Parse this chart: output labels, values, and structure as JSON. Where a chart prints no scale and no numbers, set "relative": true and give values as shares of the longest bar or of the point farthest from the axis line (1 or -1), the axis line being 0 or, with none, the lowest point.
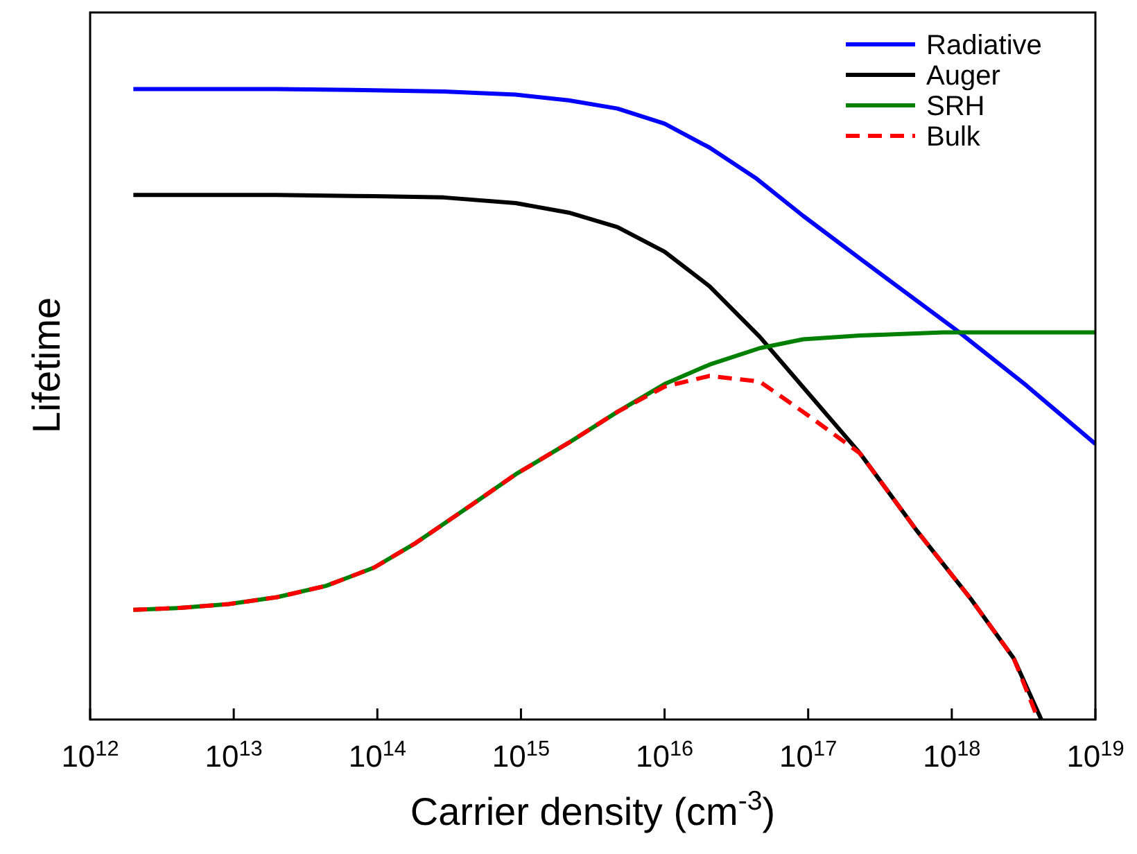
{
  "chart_data": {
    "type": "line",
    "relative": true,
    "xlabel": "Carrier density (cm$^{-3}$)",
    "ylabel": "Lifetime",
    "log": "x",
    "xlim": [
      1000000000000.0,
      1e+19
    ],
    "xticks": [
      {
        "value": 1000000000000.0,
        "label": "10$^{12}$"
      },
      {
        "value": 10000000000000.0,
        "label": "10$^{13}$"
      },
      {
        "value": 100000000000000.0,
        "label": "10$^{14}$"
      },
      {
        "value": 1000000000000000.0,
        "label": "10$^{15}$"
      },
      {
        "value": 1e+16,
        "label": "10$^{16}$"
      },
      {
        "value": 1e+17,
        "label": "10$^{17}$"
      },
      {
        "value": 1e+18,
        "label": "10$^{18}$"
      },
      {
        "value": 1e+19,
        "label": "10$^{19}$"
      }
    ],
    "legend": "top right",
    "grid": false,
    "series": [
      {
        "name": "Radiative",
        "color": "#0000ff",
        "line_style": "solid",
        "x": [
          2000000000000.0,
          20000000000000.0,
          95000000000000.0,
          290000000000000.0,
          920000000000000.0,
          2150000000000000.0,
          4700000000000000.0,
          1e+16,
          2.06e+16,
          4.3e+16,
          9.2e+16,
          2.3e+17,
          1.1e+18,
          3.3e+18,
          1e+19
        ],
        "values": [
          1.0,
          1.0,
          0.998,
          0.996,
          0.991,
          0.982,
          0.969,
          0.945,
          0.907,
          0.859,
          0.799,
          0.731,
          0.616,
          0.53,
          0.437
        ]
      },
      {
        "name": "Auger",
        "color": "#000000",
        "line_style": "solid",
        "x": [
          2000000000000.0,
          20000000000000.0,
          95000000000000.0,
          290000000000000.0,
          920000000000000.0,
          2150000000000000.0,
          4700000000000000.0,
          1e+16,
          2.06e+16,
          4.6e+16,
          9.9e+16,
          2.3e+17,
          5.6e+17,
          1.37e+18,
          2.7e+18,
          4.2e+18
        ],
        "values": [
          0.832,
          0.832,
          0.83,
          0.828,
          0.819,
          0.804,
          0.781,
          0.742,
          0.687,
          0.607,
          0.519,
          0.422,
          0.302,
          0.19,
          0.097,
          0
        ]
      },
      {
        "name": "SRH",
        "color": "#008000",
        "line_style": "solid",
        "x": [
          2000000000000.0,
          4200000000000.0,
          9200000000000.0,
          20000000000000.0,
          44000000000000.0,
          95000000000000.0,
          185000000000000.0,
          450000000000000.0,
          920000000000000.0,
          2150000000000000.0,
          4700000000000000.0,
          1e+16,
          2.06e+16,
          4.6e+16,
          9.2e+16,
          2.3e+17,
          8.7e+17,
          3.3e+18,
          1e+19
        ],
        "values": [
          0.174,
          0.177,
          0.183,
          0.194,
          0.212,
          0.241,
          0.28,
          0.34,
          0.389,
          0.439,
          0.488,
          0.532,
          0.563,
          0.589,
          0.603,
          0.609,
          0.614,
          0.614,
          0.614
        ]
      },
      {
        "name": "Bulk",
        "color": "#ff0000",
        "line_style": "dashed",
        "x": [
          2000000000000.0,
          4200000000000.0,
          9200000000000.0,
          20000000000000.0,
          44000000000000.0,
          95000000000000.0,
          185000000000000.0,
          450000000000000.0,
          920000000000000.0,
          2150000000000000.0,
          4700000000000000.0,
          1e+16,
          2.06e+16,
          4.6e+16,
          9.9e+16,
          2.3e+17,
          5.6e+17,
          1.37e+18,
          2.7e+18,
          4e+18
        ],
        "values": [
          0.174,
          0.177,
          0.183,
          0.194,
          0.212,
          0.241,
          0.28,
          0.34,
          0.389,
          0.439,
          0.488,
          0.528,
          0.545,
          0.536,
          0.483,
          0.422,
          0.302,
          0.19,
          0.097,
          0
        ]
      }
    ]
  }
}
